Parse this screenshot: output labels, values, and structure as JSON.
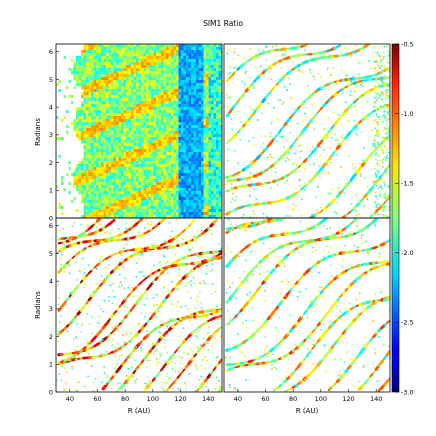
{
  "figure": {
    "title": "SIM1 Ratio"
  },
  "chart_data": {
    "type": "heatmap",
    "title": "SIM1 Ratio",
    "layout": "2x2 grid of panels sharing axes",
    "panels": [
      {
        "position": "top-left",
        "description": "dense filled field with spiral arms; blue band near R~130 AU"
      },
      {
        "position": "top-right",
        "description": "sparse spiral arm structure"
      },
      {
        "position": "bottom-left",
        "description": "sparse spiral arms with red/orange ridges"
      },
      {
        "position": "bottom-right",
        "description": "very sparse thin arcs"
      }
    ],
    "xlabel": "R (AU)",
    "ylabel": "Radians",
    "xlim": [
      30,
      150
    ],
    "ylim": [
      0,
      6.28
    ],
    "xticks": [
      "40",
      "60",
      "80",
      "100",
      "120",
      "140"
    ],
    "yticks": [
      "0",
      "1",
      "2",
      "3",
      "4",
      "5",
      "6"
    ],
    "colorbar": {
      "min": -3.0,
      "max": -0.5,
      "ticks": [
        "-0.5",
        "-1.0",
        "-1.5",
        "-2.0",
        "-2.5",
        "-3.0"
      ],
      "colormap": "jet"
    },
    "grid": false
  }
}
